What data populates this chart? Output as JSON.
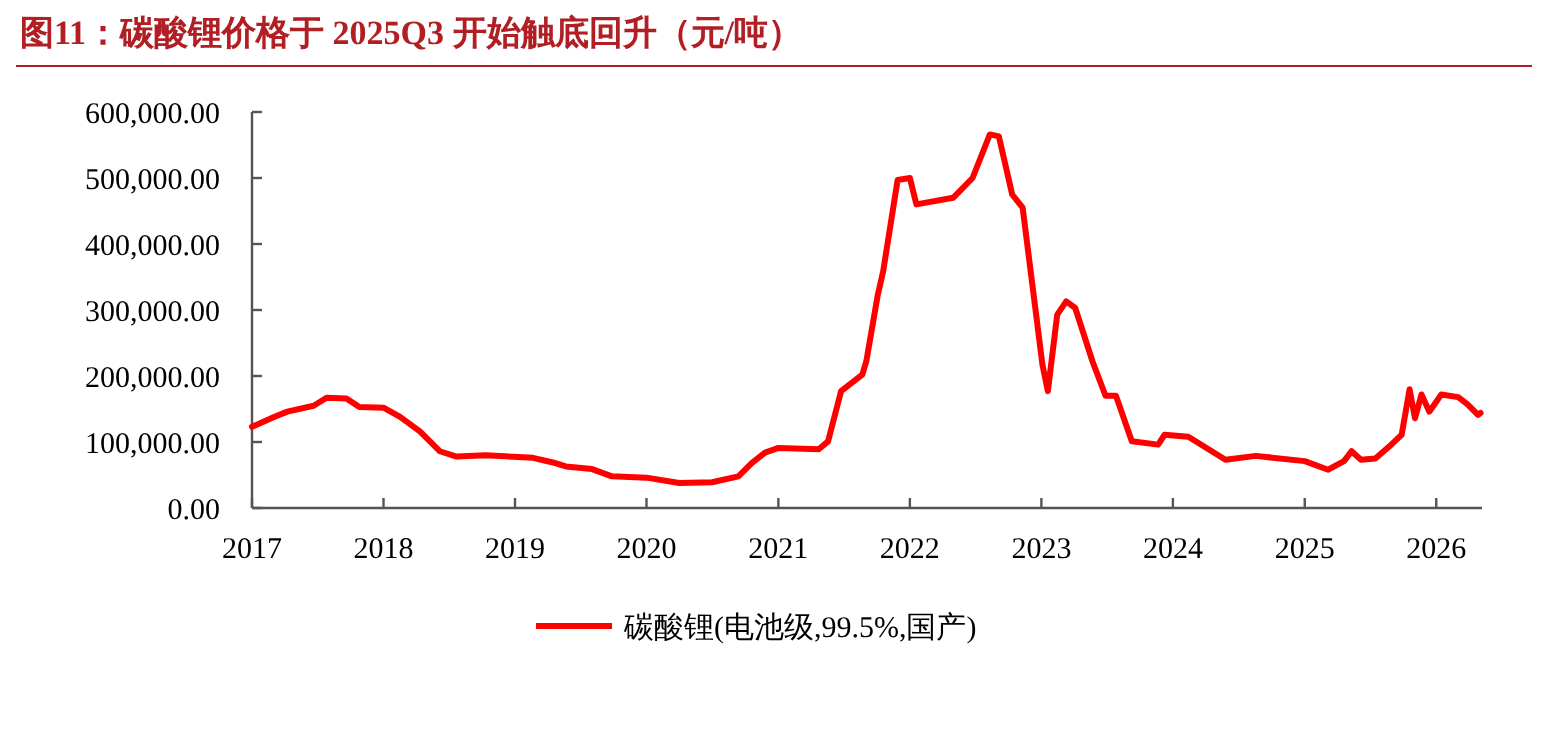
{
  "chart_data": {
    "type": "line",
    "title": "图11：碳酸锂价格于 2025Q3 开始触底回升（元/吨）",
    "x": [
      "2017-01-01",
      "2017-03-03",
      "2017-04-09",
      "2017-06-21",
      "2017-07-27",
      "2017-09-20",
      "2017-10-26",
      "2018-01-01",
      "2018-02-16",
      "2018-04-12",
      "2018-06-06",
      "2018-07-23",
      "2018-10-12",
      "2019-02-20",
      "2019-04-16",
      "2019-05-22",
      "2019-08-03",
      "2019-09-27",
      "2020-01-01",
      "2020-04-01",
      "2020-07-01",
      "2020-09-12",
      "2020-10-19",
      "2020-11-25",
      "2021-01-01",
      "2021-04-23",
      "2021-05-19",
      "2021-06-24",
      "2021-08-22",
      "2021-09-02",
      "2021-10-04",
      "2021-10-19",
      "2021-11-28",
      "2022-01-01",
      "2022-01-19",
      "2022-05-01",
      "2022-06-24",
      "2022-08-11",
      "2022-09-05",
      "2022-10-12",
      "2022-11-10",
      "2023-01-04",
      "2023-01-19",
      "2023-02-14",
      "2023-03-11",
      "2023-04-05",
      "2023-05-23",
      "2023-06-28",
      "2023-07-27",
      "2023-09-09",
      "2023-11-21",
      "2023-12-09",
      "2024-02-13",
      "2024-05-26",
      "2024-08-18",
      "2025-01-01",
      "2025-03-07",
      "2025-04-20",
      "2025-05-11",
      "2025-06-06",
      "2025-07-16",
      "2025-08-29",
      "2025-09-27",
      "2025-10-19",
      "2025-11-03",
      "2025-11-21",
      "2025-12-13",
      "2026-01-15",
      "2026-03-03",
      "2026-03-29",
      "2026-04-27",
      "2026-05-04"
    ],
    "series": [
      {
        "name": "碳酸锂(电池级,99.5%,国产)",
        "color": "#ff0000",
        "values": [
          123000,
          138000,
          146000,
          155000,
          167000,
          166000,
          153000,
          152000,
          138000,
          116000,
          86000,
          78000,
          80000,
          76000,
          69000,
          63000,
          59000,
          48000,
          46000,
          38000,
          39000,
          48000,
          68000,
          84000,
          91000,
          89000,
          101000,
          177000,
          202000,
          222000,
          323000,
          359000,
          497000,
          500000,
          460000,
          470000,
          500000,
          566000,
          563000,
          475000,
          455000,
          217000,
          177000,
          293000,
          313000,
          303000,
          222000,
          170000,
          170000,
          101000,
          96000,
          111000,
          108000,
          73000,
          79000,
          71000,
          58000,
          71000,
          86000,
          73000,
          75000,
          96000,
          111000,
          180000,
          136000,
          172000,
          146000,
          172000,
          168000,
          157000,
          141000,
          144000
        ]
      }
    ],
    "xlim": [
      "2017-01-01",
      "2026-05-08"
    ],
    "xticks": [
      {
        "value": "2017-01-01",
        "label": "2017"
      },
      {
        "value": "2018-01-01",
        "label": "2018"
      },
      {
        "value": "2019-01-01",
        "label": "2019"
      },
      {
        "value": "2020-01-01",
        "label": "2020"
      },
      {
        "value": "2021-01-01",
        "label": "2021"
      },
      {
        "value": "2022-01-01",
        "label": "2022"
      },
      {
        "value": "2023-01-01",
        "label": "2023"
      },
      {
        "value": "2024-01-01",
        "label": "2024"
      },
      {
        "value": "2025-01-01",
        "label": "2025"
      },
      {
        "value": "2026-01-01",
        "label": "2026"
      }
    ],
    "ylim": [
      0,
      600000
    ],
    "yticks": [
      {
        "value": 0,
        "label": "0.00"
      },
      {
        "value": 100000,
        "label": "100,000.00"
      },
      {
        "value": 200000,
        "label": "200,000.00"
      },
      {
        "value": 300000,
        "label": "300,000.00"
      },
      {
        "value": 400000,
        "label": "400,000.00"
      },
      {
        "value": 500000,
        "label": "500,000.00"
      },
      {
        "value": 600000,
        "label": "600,000.00"
      }
    ],
    "grid": false,
    "legend": "bottom",
    "marker": "none",
    "line_style": "solid"
  }
}
